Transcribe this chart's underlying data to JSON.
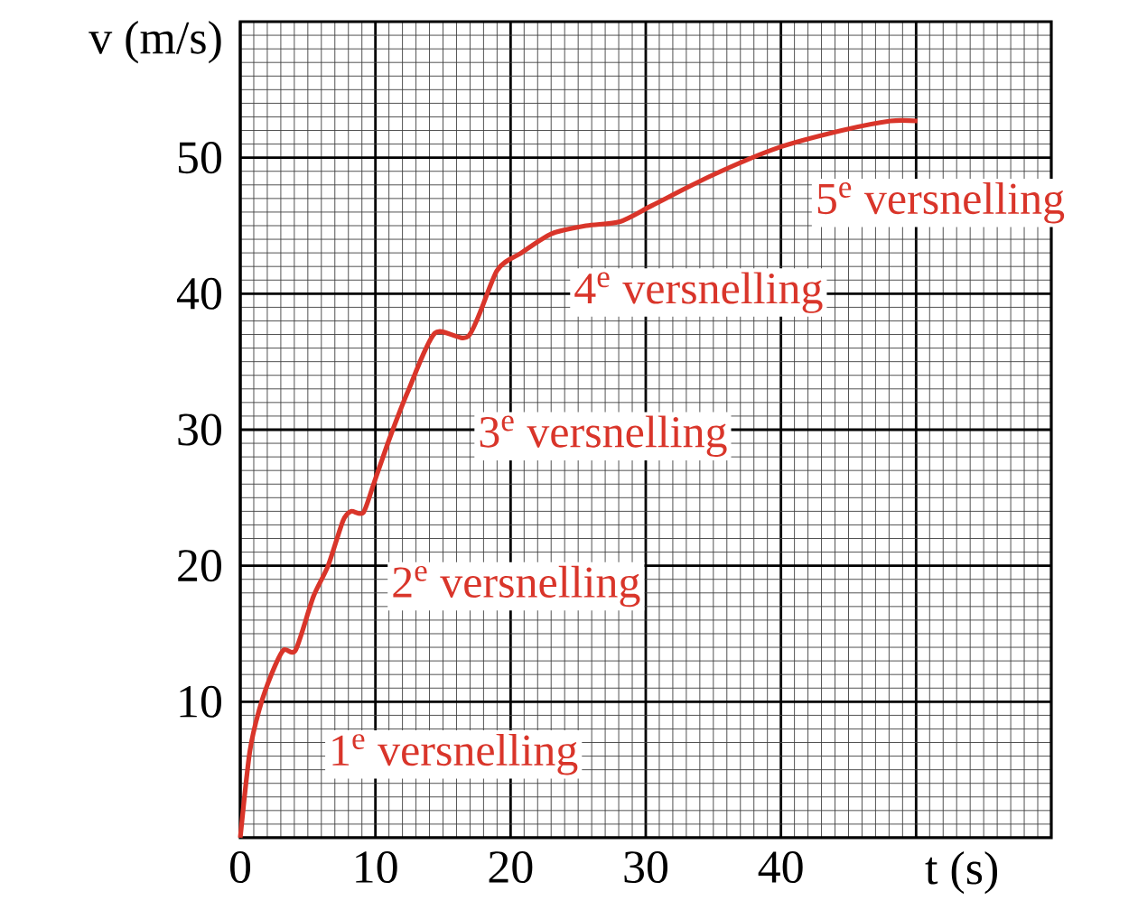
{
  "chart_data": {
    "type": "line",
    "xlabel": "t (s)",
    "ylabel": "v (m/s)",
    "color": "#d9352a",
    "x": [
      0,
      0.7,
      1.4,
      2.3,
      3.2,
      4.1,
      5.4,
      6.5,
      7.6,
      8.2,
      9.1,
      9.9,
      11.1,
      12.4,
      14.4,
      16.9,
      19.0,
      20.8,
      23.0,
      25.6,
      28.1,
      30.5,
      34.9,
      39.7,
      44.5,
      48.1,
      50.1
    ],
    "values": [
      0,
      6.3,
      9.4,
      12.0,
      13.8,
      13.8,
      17.7,
      20.0,
      23.3,
      24.0,
      23.9,
      26.1,
      29.5,
      32.8,
      37.1,
      36.9,
      41.7,
      43.0,
      44.4,
      45.0,
      45.3,
      46.5,
      48.7,
      50.7,
      52.0,
      52.7,
      52.7
    ],
    "xlim": [
      0,
      60
    ],
    "ylim": [
      0,
      60
    ],
    "xticks": [
      0,
      10,
      20,
      30,
      40,
      {
        "value": 50,
        "label": null
      }
    ],
    "yticks": [
      10,
      20,
      30,
      40,
      50
    ],
    "grid": true,
    "annotations": [
      "1$^{e}$ versnelling",
      "2$^{e}$ versnelling",
      "3$^{e}$ versnelling",
      "4$^{e}$ versnelling",
      "5$^{e}$ versnelling"
    ]
  }
}
